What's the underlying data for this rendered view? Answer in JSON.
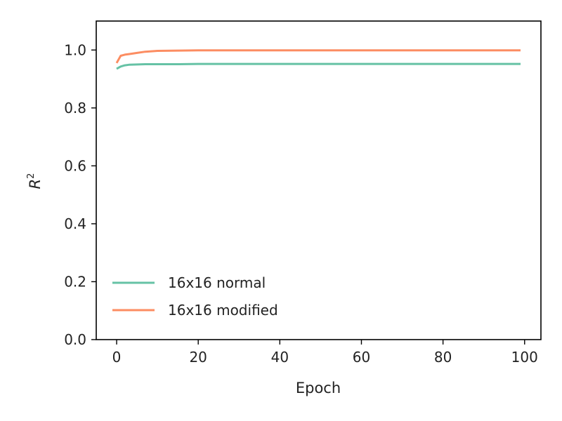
{
  "chart_data": {
    "type": "line",
    "xlabel": "Epoch",
    "ylabel": "R",
    "ylabel_sup": "2",
    "xlim": [
      -5,
      104
    ],
    "ylim": [
      0.0,
      1.1
    ],
    "xticks": [
      0,
      20,
      40,
      60,
      80,
      100
    ],
    "xtick_labels": [
      "0",
      "20",
      "40",
      "60",
      "80",
      "100"
    ],
    "yticks": [
      0.0,
      0.2,
      0.4,
      0.6,
      0.8,
      1.0
    ],
    "ytick_labels": [
      "0.0",
      "0.2",
      "0.4",
      "0.6",
      "0.8",
      "1.0"
    ],
    "grid": false,
    "legend_position": "lower-left",
    "series": [
      {
        "name": "16x16 normal",
        "color": "#66c2a5",
        "x": [
          0,
          1,
          2,
          3,
          5,
          7,
          10,
          15,
          20,
          30,
          40,
          50,
          60,
          70,
          80,
          90,
          99
        ],
        "y": [
          0.935,
          0.943,
          0.947,
          0.949,
          0.95,
          0.951,
          0.951,
          0.951,
          0.952,
          0.952,
          0.952,
          0.952,
          0.952,
          0.952,
          0.952,
          0.952,
          0.952
        ]
      },
      {
        "name": "16x16 modified",
        "color": "#fc8d62",
        "x": [
          0,
          1,
          2,
          3,
          5,
          7,
          10,
          15,
          20,
          30,
          40,
          50,
          60,
          70,
          80,
          90,
          99
        ],
        "y": [
          0.955,
          0.98,
          0.984,
          0.986,
          0.99,
          0.994,
          0.997,
          0.998,
          0.999,
          0.999,
          0.999,
          0.999,
          0.999,
          0.999,
          0.999,
          0.999,
          0.999
        ]
      }
    ]
  }
}
